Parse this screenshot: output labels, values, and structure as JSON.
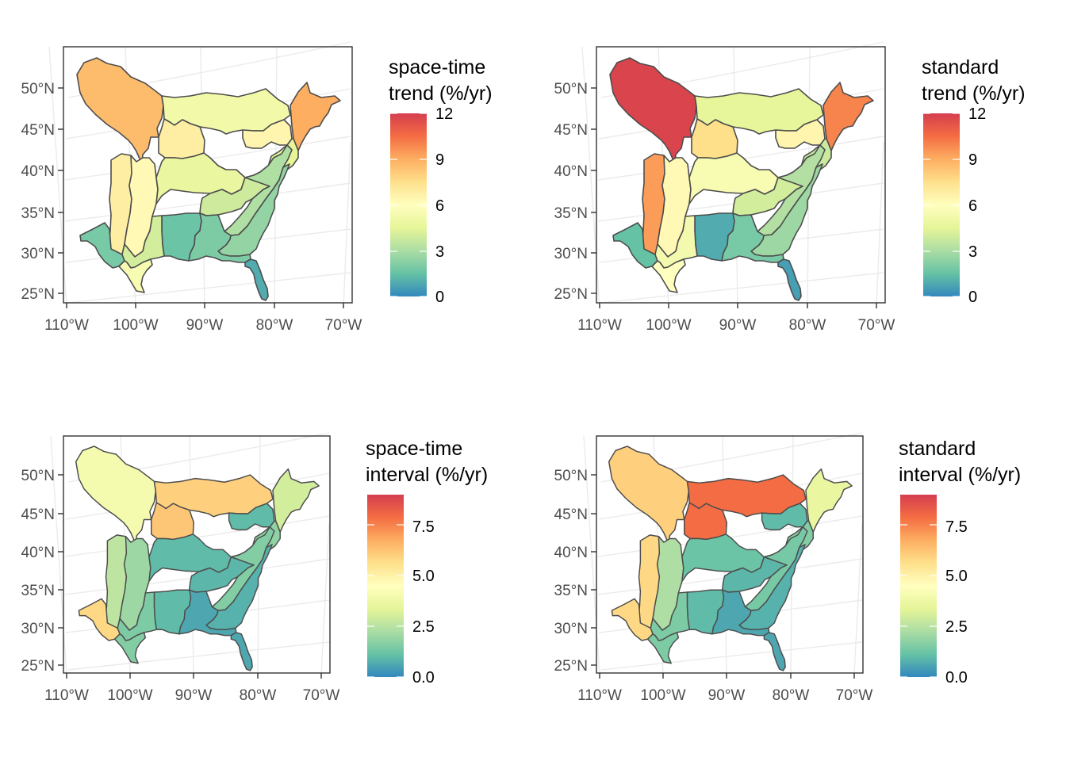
{
  "panels": [
    {
      "legend_title": [
        "space-time",
        "trend (%/yr)"
      ],
      "legend_ticks": [
        "12",
        "9",
        "6",
        "3",
        "0"
      ],
      "legend_tick_values": [
        12,
        9,
        6,
        3,
        0
      ],
      "legend_range": [
        0,
        12
      ],
      "x_labels": [
        "110°W",
        "100°W",
        "90°W",
        "80°W",
        "70°W"
      ],
      "y_labels": [
        "50°N",
        "45°N",
        "40°N",
        "35°N",
        "30°N",
        "25°N"
      ],
      "region_values": {
        "north": 8.6,
        "northeast": 9.0,
        "center_north": 5.2,
        "great_lakes_w": 6.8,
        "great_lakes_e": 6.5,
        "ne_coast": 4.5,
        "plains_w": 6.8,
        "plains_e": 6.3,
        "midwest": 4.8,
        "ohio": 3.9,
        "appalachia": 3.1,
        "atlantic": 2.5,
        "mid_south": 1.6,
        "southeast": 2.0,
        "florida": 0.9,
        "texas_w": 1.9,
        "texas_e": 4.0,
        "gulf_tx": 5.5
      }
    },
    {
      "legend_title": [
        "standard",
        "trend (%/yr)"
      ],
      "legend_ticks": [
        "12",
        "9",
        "6",
        "3",
        "0"
      ],
      "legend_tick_values": [
        12,
        9,
        6,
        3,
        0
      ],
      "legend_range": [
        0,
        12
      ],
      "x_labels": [
        "110°W",
        "100°W",
        "90°W",
        "80°W",
        "70°W"
      ],
      "y_labels": [
        "50°N",
        "45°N",
        "40°N",
        "35°N",
        "30°N",
        "25°N"
      ],
      "region_values": {
        "north": 11.8,
        "northeast": 10.0,
        "center_north": 4.6,
        "great_lakes_w": 7.5,
        "great_lakes_e": 6.5,
        "ne_coast": 3.8,
        "plains_w": 9.4,
        "plains_e": 6.3,
        "midwest": 5.5,
        "ohio": 4.0,
        "appalachia": 3.2,
        "atlantic": 2.7,
        "mid_south": 0.9,
        "southeast": 1.9,
        "florida": 0.6,
        "texas_w": 1.5,
        "texas_e": 5.3,
        "gulf_tx": 6.0
      }
    },
    {
      "legend_title": [
        "space-time",
        "interval (%/yr)"
      ],
      "legend_ticks": [
        "7.5",
        "5.0",
        "2.5",
        "0.0"
      ],
      "legend_tick_values": [
        7.5,
        5.0,
        2.5,
        0.0
      ],
      "legend_range": [
        0,
        9
      ],
      "x_labels": [
        "110°W",
        "100°W",
        "90°W",
        "80°W",
        "70°W"
      ],
      "y_labels": [
        "50°N",
        "45°N",
        "40°N",
        "35°N",
        "30°N",
        "25°N"
      ],
      "region_values": {
        "north": 4.0,
        "northeast": 3.0,
        "center_north": 6.0,
        "great_lakes_w": 6.2,
        "great_lakes_e": 1.0,
        "ne_coast": 1.8,
        "plains_w": 2.6,
        "plains_e": 2.0,
        "midwest": 1.0,
        "ohio": 0.9,
        "appalachia": 1.6,
        "atlantic": 0.8,
        "mid_south": 1.0,
        "southeast": 0.6,
        "florida": 0.6,
        "texas_w": 5.8,
        "texas_e": 1.5,
        "gulf_tx": 1.6
      }
    },
    {
      "legend_title": [
        "standard",
        "interval (%/yr)"
      ],
      "legend_ticks": [
        "7.5",
        "5.0",
        "2.5",
        "0.0"
      ],
      "legend_tick_values": [
        7.5,
        5.0,
        2.5,
        0.0
      ],
      "legend_range": [
        0,
        9
      ],
      "x_labels": [
        "110°W",
        "100°W",
        "90°W",
        "80°W",
        "70°W"
      ],
      "y_labels": [
        "50°N",
        "45°N",
        "40°N",
        "35°N",
        "30°N",
        "25°N"
      ],
      "region_values": {
        "north": 6.0,
        "northeast": 3.6,
        "center_north": 7.9,
        "great_lakes_w": 7.9,
        "great_lakes_e": 1.0,
        "ne_coast": 1.6,
        "plains_w": 5.8,
        "plains_e": 2.3,
        "midwest": 1.2,
        "ohio": 0.9,
        "appalachia": 1.4,
        "atlantic": 0.8,
        "mid_south": 1.0,
        "southeast": 0.6,
        "florida": 0.6,
        "texas_w": 5.8,
        "texas_e": 1.5,
        "gulf_tx": 1.5
      }
    }
  ],
  "colors": {
    "scale": [
      "#3288bd",
      "#66c2a5",
      "#abdda4",
      "#e6f598",
      "#ffffbf",
      "#fee08b",
      "#fdae61",
      "#f46d43",
      "#d53e4f"
    ],
    "region_border": "#4d4d4d",
    "graticule": "#ebebeb",
    "panel_border": "#333333"
  }
}
